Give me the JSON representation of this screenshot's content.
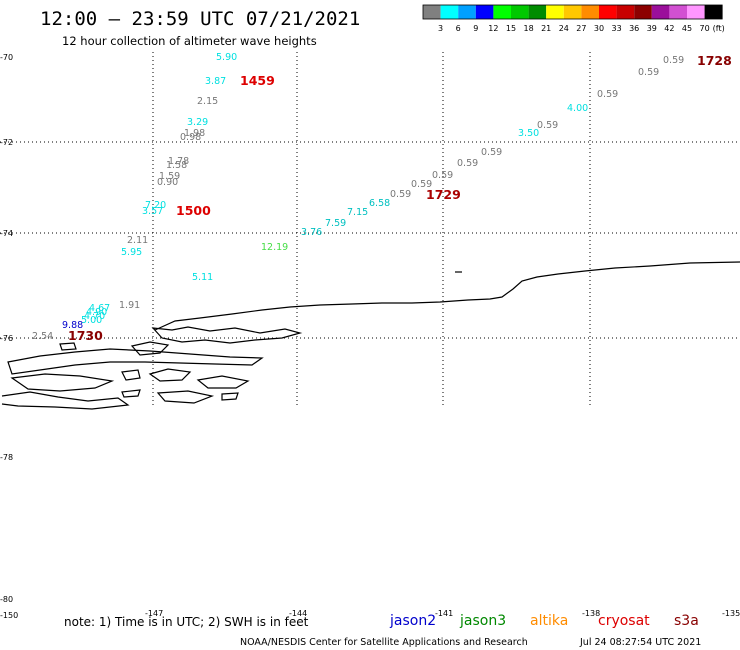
{
  "header": {
    "title": "12:00 – 23:59 UTC 07/21/2021",
    "subtitle": "12 hour collection of altimeter wave heights"
  },
  "colorbar": {
    "colors": [
      "#808080",
      "#00ffff",
      "#00a0ff",
      "#0000ff",
      "#00ff00",
      "#00c800",
      "#008c00",
      "#ffff00",
      "#ffc800",
      "#ff8c00",
      "#ff0000",
      "#c80000",
      "#8c0000",
      "#9b0f9b",
      "#d250d2",
      "#ff96ff",
      "#000000"
    ],
    "labels": [
      "3",
      "6",
      "9",
      "12",
      "15",
      "18",
      "21",
      "24",
      "27",
      "30",
      "33",
      "36",
      "39",
      "42",
      "45",
      "70",
      "(ft)"
    ]
  },
  "axes": {
    "lat_labels": [
      "-70",
      "-72",
      "-74",
      "-76",
      "-78",
      "-80"
    ],
    "lon_labels": [
      "-150",
      "-147",
      "-144",
      "-141",
      "-138",
      "-135"
    ]
  },
  "wave_heights": [
    {
      "text": "5.90",
      "color": "#00e0e0"
    },
    {
      "text": "3.87",
      "color": "#00e0e0"
    },
    {
      "text": "2.15",
      "color": "#777777"
    },
    {
      "text": "3.29",
      "color": "#00e0e0"
    },
    {
      "text": "1.98",
      "color": "#777777"
    },
    {
      "text": "0.98",
      "color": "#777777"
    },
    {
      "text": "1.78",
      "color": "#777777"
    },
    {
      "text": "1.58",
      "color": "#777777"
    },
    {
      "text": "1.59",
      "color": "#777777"
    },
    {
      "text": "0.90",
      "color": "#777777"
    },
    {
      "text": "7.20",
      "color": "#00e0e0"
    },
    {
      "text": "3.57",
      "color": "#00e0e0"
    },
    {
      "text": "2.11",
      "color": "#777777"
    },
    {
      "text": "5.95",
      "color": "#00e0e0"
    },
    {
      "text": "5.11",
      "color": "#00e0e0"
    },
    {
      "text": "12.19",
      "color": "#44dd44"
    },
    {
      "text": "3.76",
      "color": "#00c0c0"
    },
    {
      "text": "7.59",
      "color": "#00c0c0"
    },
    {
      "text": "7.15",
      "color": "#00c0c0"
    },
    {
      "text": "6.58",
      "color": "#00c0c0"
    },
    {
      "text": "0.59",
      "color": "#777777"
    },
    {
      "text": "0.59",
      "color": "#777777"
    },
    {
      "text": "0.59",
      "color": "#777777"
    },
    {
      "text": "0.59",
      "color": "#777777"
    },
    {
      "text": "0.59",
      "color": "#777777"
    },
    {
      "text": "0.59",
      "color": "#777777"
    },
    {
      "text": "3.50",
      "color": "#00e0e0"
    },
    {
      "text": "4.00",
      "color": "#00e0e0"
    },
    {
      "text": "0.59",
      "color": "#777777"
    },
    {
      "text": "0.59",
      "color": "#777777"
    },
    {
      "text": "0.59",
      "color": "#777777"
    },
    {
      "text": "1.91",
      "color": "#777777"
    },
    {
      "text": "4.67",
      "color": "#00e0e0"
    },
    {
      "text": "4.90",
      "color": "#00e0e0"
    },
    {
      "text": "4.70",
      "color": "#00e0e0"
    },
    {
      "text": "5.00",
      "color": "#00e0e0"
    },
    {
      "text": "9.88",
      "color": "#0000cc"
    },
    {
      "text": "2.54",
      "color": "#777777"
    }
  ],
  "pass_times": [
    {
      "text": "1459",
      "color": "#dd0000"
    },
    {
      "text": "1500",
      "color": "#dd0000"
    },
    {
      "text": "1729",
      "color": "#aa0000"
    },
    {
      "text": "1728",
      "color": "#880000"
    },
    {
      "text": "1730",
      "color": "#880000"
    }
  ],
  "footer": {
    "note": "note:  1) Time is in UTC;  2) SWH is in feet",
    "satellites": [
      {
        "name": "jason2",
        "color": "#0000cc"
      },
      {
        "name": "jason3",
        "color": "#008800"
      },
      {
        "name": "altika",
        "color": "#ff8c00"
      },
      {
        "name": "cryosat",
        "color": "#dd0000"
      },
      {
        "name": "s3a",
        "color": "#880000"
      }
    ],
    "credit": "NOAA/NESDIS Center for Satellite Applications and Research",
    "timestamp": "Jul 24 08:27:54 UTC 2021"
  }
}
